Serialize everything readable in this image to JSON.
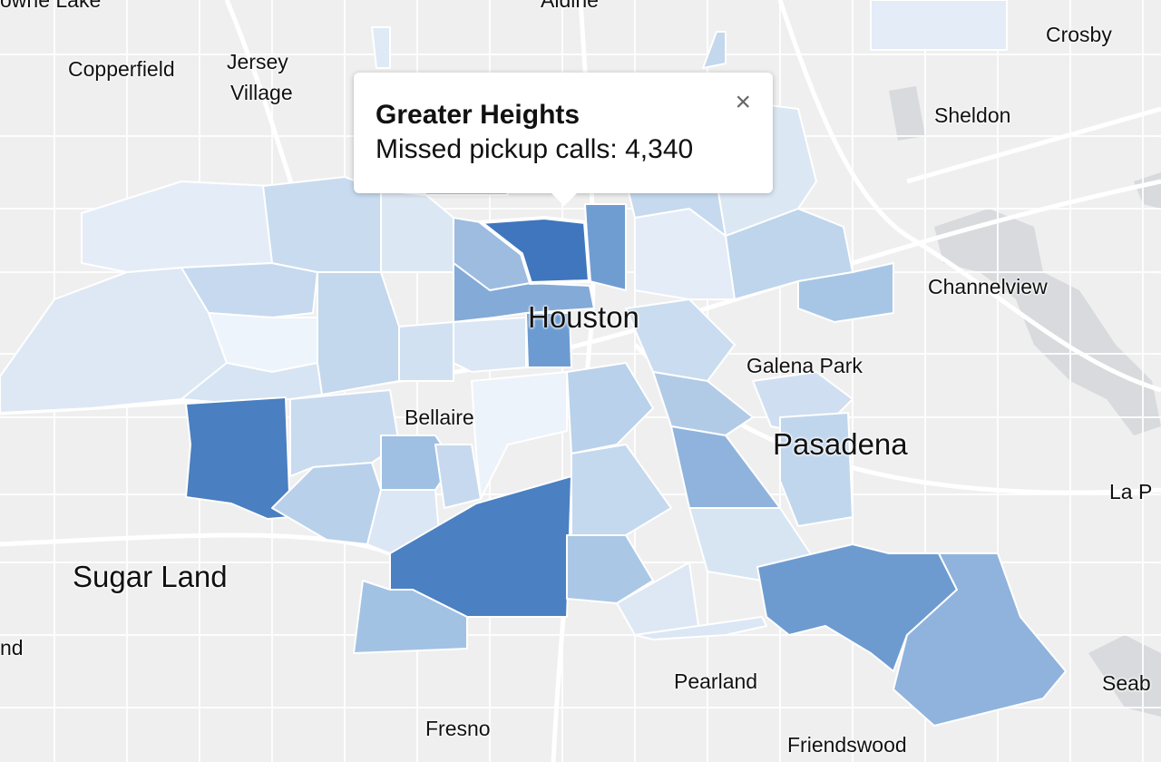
{
  "popup": {
    "title": "Greater Heights",
    "metric_label": "Missed pickup calls:",
    "metric_value": "4,340",
    "close_glyph": "×"
  },
  "places": {
    "towne_lake": "owne Lake",
    "aldine": "Aldine",
    "crosby": "Crosby",
    "copperfield": "Copperfield",
    "jersey_village_1": "Jersey",
    "jersey_village_2": "Village",
    "sheldon": "Sheldon",
    "channelview": "Channelview",
    "houston": "Houston",
    "galena_park": "Galena Park",
    "bellaire": "Bellaire",
    "pasadena": "Pasadena",
    "la_porte": "La P",
    "sugar_land": "Sugar Land",
    "missouri_city_partial": "nd",
    "pearland": "Pearland",
    "seabrook": "Seab",
    "fresno": "Fresno",
    "friendswood": "Friendswood"
  },
  "colors": {
    "basemap": "#efefef",
    "roads": "#ffffff",
    "water": "#d7d9dc",
    "choropleth_scale": [
      "#eef4fb",
      "#dbe7f4",
      "#c3d8ee",
      "#a7c6e6",
      "#7fa9d6",
      "#4a7fc1"
    ],
    "selected_border": "#ffffff"
  }
}
